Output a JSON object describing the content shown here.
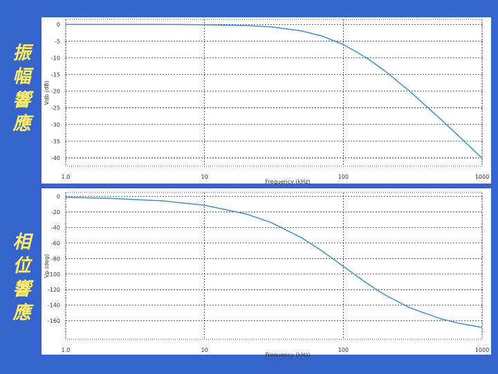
{
  "slide_labels": [
    "振幅響應",
    "相位響應"
  ],
  "chart_data": [
    {
      "type": "line",
      "x_label": "Frequency (kHz)",
      "y_label": "Vdb (dB)",
      "x": [
        1,
        2,
        5,
        10,
        20,
        30,
        50,
        70,
        100,
        150,
        200,
        300,
        500,
        700,
        1000
      ],
      "values": [
        0.0,
        0.0,
        -0.02,
        -0.09,
        -0.34,
        -0.75,
        -1.94,
        -3.46,
        -6.02,
        -10.24,
        -13.98,
        -20.0,
        -28.3,
        -33.98,
        -40.09
      ],
      "color": "#3b8fd6",
      "log_x": true,
      "grid": true,
      "xlim": [
        1,
        1000
      ],
      "xticks": [
        {
          "value": 1,
          "label": "1.0"
        },
        10,
        100,
        1000
      ],
      "ylim": [
        -42.5,
        1.5
      ],
      "yticks": [
        0,
        -5,
        -10,
        -15,
        -20,
        -25,
        -30,
        -35,
        -40
      ]
    },
    {
      "type": "line",
      "x_label": "Frequency (kHz)",
      "y_label": "Vp (deg)",
      "x": [
        1,
        2,
        5,
        10,
        20,
        30,
        50,
        70,
        100,
        150,
        200,
        300,
        500,
        700,
        1000
      ],
      "values": [
        -1.15,
        -2.29,
        -5.72,
        -11.42,
        -22.62,
        -33.4,
        -53.13,
        -69.98,
        -90.0,
        -112.62,
        -126.87,
        -143.13,
        -157.38,
        -163.74,
        -168.58
      ],
      "color": "#3b8fd6",
      "log_x": true,
      "grid": true,
      "xlim": [
        1,
        1000
      ],
      "xticks": [
        {
          "value": 1,
          "label": "1.0"
        },
        10,
        100,
        1000
      ],
      "ylim": [
        -184,
        5
      ],
      "yticks": [
        0,
        -20,
        -40,
        -60,
        -80,
        -100,
        -120,
        -140,
        -160
      ]
    }
  ]
}
